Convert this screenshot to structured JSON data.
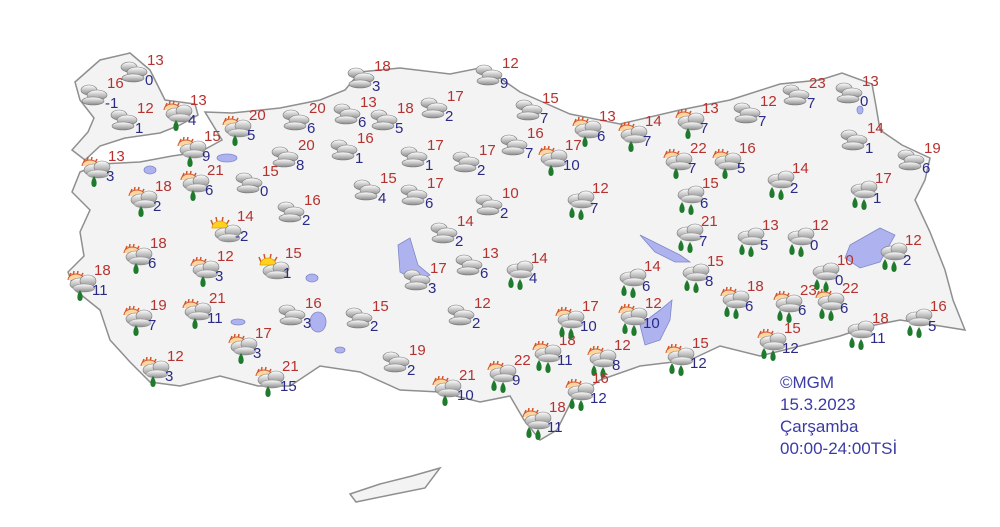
{
  "map": {
    "land_color": "#f3f3f3",
    "border_color": "#9a9a9a",
    "lake_color": "#aeb3f0",
    "max_temp_color": "#b5322f",
    "min_temp_color": "#2b2b86"
  },
  "legend": {
    "copyright": "©MGM",
    "date": "15.3.2023",
    "day": "Çarşamba",
    "period": "00:00-24:00TSİ"
  },
  "stations": [
    {
      "icon": "cloudy",
      "max": "16",
      "min": "-1"
    },
    {
      "icon": "cloudy",
      "max": "13",
      "min": "0"
    },
    {
      "icon": "cloudy",
      "max": "12",
      "min": "1"
    },
    {
      "icon": "sun-cloud-rain",
      "max": "13",
      "min": "4"
    },
    {
      "icon": "sun-cloud-rain",
      "max": "20",
      "min": "5"
    },
    {
      "icon": "sun-cloud-rain",
      "max": "15",
      "min": "9"
    },
    {
      "icon": "sun-cloud-rain",
      "max": "13",
      "min": "3"
    },
    {
      "icon": "sun-cloud-rain",
      "max": "18",
      "min": "2"
    },
    {
      "icon": "sun-cloud-rain",
      "max": "21",
      "min": "6"
    },
    {
      "icon": "cloudy",
      "max": "15",
      "min": "0"
    },
    {
      "icon": "cloudy",
      "max": "20",
      "min": "6"
    },
    {
      "icon": "cloudy",
      "max": "20",
      "min": "8"
    },
    {
      "icon": "cloudy",
      "max": "13",
      "min": "6"
    },
    {
      "icon": "cloudy",
      "max": "18",
      "min": "3"
    },
    {
      "icon": "cloudy",
      "max": "18",
      "min": "5"
    },
    {
      "icon": "cloudy",
      "max": "16",
      "min": "1"
    },
    {
      "icon": "cloudy",
      "max": "17",
      "min": "2"
    },
    {
      "icon": "cloudy",
      "max": "12",
      "min": "9"
    },
    {
      "icon": "cloudy",
      "max": "17",
      "min": "1"
    },
    {
      "icon": "cloudy",
      "max": "17",
      "min": "2"
    },
    {
      "icon": "cloudy",
      "max": "15",
      "min": "4"
    },
    {
      "icon": "cloudy",
      "max": "17",
      "min": "6"
    },
    {
      "icon": "cloudy",
      "max": "10",
      "min": "2"
    },
    {
      "icon": "cloudy",
      "max": "16",
      "min": "2"
    },
    {
      "icon": "partly-cloudy",
      "max": "14",
      "min": "-2"
    },
    {
      "icon": "cloudy",
      "max": "14",
      "min": "2"
    },
    {
      "icon": "sun-cloud-rain",
      "max": "18",
      "min": "6"
    },
    {
      "icon": "sun-cloud-rain",
      "max": "12",
      "min": "3"
    },
    {
      "icon": "partly-cloudy",
      "max": "15",
      "min": "1"
    },
    {
      "icon": "sun-cloud-rain",
      "max": "18",
      "min": "11"
    },
    {
      "icon": "sun-cloud-rain",
      "max": "19",
      "min": "7"
    },
    {
      "icon": "sun-cloud-rain",
      "max": "21",
      "min": "11"
    },
    {
      "icon": "cloudy",
      "max": "16",
      "min": "3"
    },
    {
      "icon": "cloudy",
      "max": "17",
      "min": "3"
    },
    {
      "icon": "cloudy",
      "max": "13",
      "min": "6"
    },
    {
      "icon": "cloudy",
      "max": "15",
      "min": "2"
    },
    {
      "icon": "cloudy",
      "max": "12",
      "min": "2"
    },
    {
      "icon": "sun-cloud-rain",
      "max": "17",
      "min": "3"
    },
    {
      "icon": "sun-cloud-rain",
      "max": "12",
      "min": "3"
    },
    {
      "icon": "sun-cloud-rain",
      "max": "21",
      "min": "15"
    },
    {
      "icon": "cloudy",
      "max": "19",
      "min": "2"
    },
    {
      "icon": "sun-cloud-rain",
      "max": "21",
      "min": "10"
    },
    {
      "icon": "sun-cloud-heavy-rain",
      "max": "22",
      "min": "9"
    },
    {
      "icon": "sun-cloud-heavy-rain",
      "max": "18",
      "min": "11"
    },
    {
      "icon": "sun-cloud-heavy-rain",
      "max": "18",
      "min": "11"
    },
    {
      "icon": "sun-cloud-heavy-rain",
      "max": "17",
      "min": "10"
    },
    {
      "icon": "sun-cloud-heavy-rain",
      "max": "12",
      "min": "8"
    },
    {
      "icon": "sun-cloud-heavy-rain",
      "max": "16",
      "min": "12"
    },
    {
      "icon": "sun-cloud-heavy-rain",
      "max": "12",
      "min": "10"
    },
    {
      "icon": "sun-cloud-heavy-rain",
      "max": "15",
      "min": "12"
    },
    {
      "icon": "rain",
      "max": "14",
      "min": "4"
    },
    {
      "icon": "rain",
      "max": "14",
      "min": "6"
    },
    {
      "icon": "rain",
      "max": "15",
      "min": "8"
    },
    {
      "icon": "sun-cloud-heavy-rain",
      "max": "18",
      "min": "6"
    },
    {
      "icon": "sun-cloud-heavy-rain",
      "max": "23",
      "min": "6"
    },
    {
      "icon": "sun-cloud-heavy-rain",
      "max": "22",
      "min": "6"
    },
    {
      "icon": "sun-cloud-heavy-rain",
      "max": "15",
      "min": "12"
    },
    {
      "icon": "rain",
      "max": "18",
      "min": "11"
    },
    {
      "icon": "rain",
      "max": "16",
      "min": "5"
    },
    {
      "icon": "rain",
      "max": "10",
      "min": "0"
    },
    {
      "icon": "rain",
      "max": "12",
      "min": "2"
    },
    {
      "icon": "rain",
      "max": "12",
      "min": "0"
    },
    {
      "icon": "rain",
      "max": "13",
      "min": "5"
    },
    {
      "icon": "rain",
      "max": "21",
      "min": "7"
    },
    {
      "icon": "rain",
      "max": "12",
      "min": "7"
    },
    {
      "icon": "rain",
      "max": "15",
      "min": "6"
    },
    {
      "icon": "rain",
      "max": "14",
      "min": "2"
    },
    {
      "icon": "rain",
      "max": "17",
      "min": "1"
    },
    {
      "icon": "cloudy",
      "max": "19",
      "min": "6"
    },
    {
      "icon": "cloudy",
      "max": "14",
      "min": "1"
    },
    {
      "icon": "cloudy",
      "max": "13",
      "min": "0"
    },
    {
      "icon": "cloudy",
      "max": "23",
      "min": "7"
    },
    {
      "icon": "cloudy",
      "max": "12",
      "min": "7"
    },
    {
      "icon": "sun-cloud-rain",
      "max": "13",
      "min": "7"
    },
    {
      "icon": "sun-cloud-rain",
      "max": "14",
      "min": "7"
    },
    {
      "icon": "sun-cloud-rain",
      "max": "13",
      "min": "6"
    },
    {
      "icon": "cloudy",
      "max": "15",
      "min": "7"
    },
    {
      "icon": "cloudy",
      "max": "16",
      "min": "7"
    },
    {
      "icon": "sun-cloud-rain",
      "max": "17",
      "min": "10"
    },
    {
      "icon": "sun-cloud-rain",
      "max": "22",
      "min": "7"
    },
    {
      "icon": "sun-cloud-rain",
      "max": "16",
      "min": "5"
    }
  ]
}
